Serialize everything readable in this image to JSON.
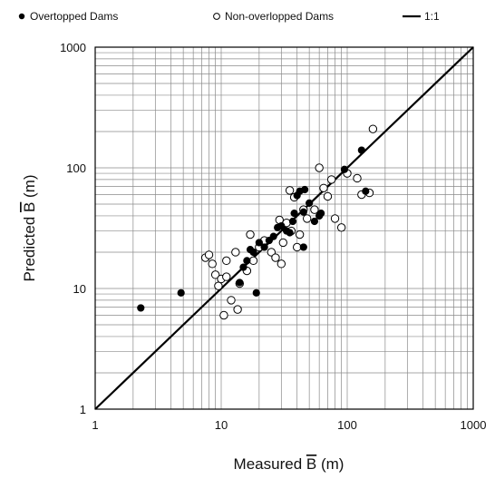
{
  "chart_data": {
    "type": "scatter",
    "xlabel": "Measured B (m)",
    "ylabel": "Predicted B (m)",
    "x_scale": "log",
    "y_scale": "log",
    "xlim": [
      1,
      1000
    ],
    "ylim": [
      1,
      1000
    ],
    "grid": true,
    "legend_position": "top",
    "x_ticks": [
      "1",
      "10",
      "100",
      "1000"
    ],
    "y_ticks": [
      "1",
      "10",
      "100",
      "1000"
    ],
    "series": [
      {
        "name": "Overtopped Dams",
        "marker": "filled-circle",
        "color": "#000000",
        "points": [
          [
            2.3,
            6.9
          ],
          [
            4.8,
            9.2
          ],
          [
            14,
            11.2
          ],
          [
            15,
            15
          ],
          [
            16,
            17
          ],
          [
            17,
            21
          ],
          [
            18,
            20
          ],
          [
            19,
            9.2
          ],
          [
            20,
            24
          ],
          [
            22,
            22
          ],
          [
            24,
            25
          ],
          [
            26,
            27
          ],
          [
            28,
            32
          ],
          [
            30,
            33
          ],
          [
            33,
            30
          ],
          [
            35,
            29
          ],
          [
            37,
            36
          ],
          [
            38,
            42
          ],
          [
            40,
            59
          ],
          [
            42,
            64
          ],
          [
            45,
            43
          ],
          [
            45,
            22
          ],
          [
            46,
            66
          ],
          [
            50,
            51
          ],
          [
            55,
            36
          ],
          [
            60,
            40
          ],
          [
            62,
            42
          ],
          [
            95,
            97
          ],
          [
            130,
            140
          ],
          [
            140,
            64
          ]
        ]
      },
      {
        "name": "Non-overlopped Dams",
        "marker": "open-circle",
        "color": "#000000",
        "points": [
          [
            7.5,
            18
          ],
          [
            8,
            19
          ],
          [
            8.5,
            16
          ],
          [
            9,
            13
          ],
          [
            9.5,
            10.5
          ],
          [
            10,
            12
          ],
          [
            10.5,
            6
          ],
          [
            11,
            17
          ],
          [
            11,
            12.5
          ],
          [
            12,
            8
          ],
          [
            13,
            20
          ],
          [
            13.5,
            6.7
          ],
          [
            14,
            11
          ],
          [
            16,
            14
          ],
          [
            17,
            28
          ],
          [
            18,
            17
          ],
          [
            20,
            22
          ],
          [
            22,
            25
          ],
          [
            25,
            20
          ],
          [
            27,
            18
          ],
          [
            29,
            37
          ],
          [
            30,
            16
          ],
          [
            31,
            24
          ],
          [
            33,
            35
          ],
          [
            35,
            65
          ],
          [
            36,
            30
          ],
          [
            38,
            57
          ],
          [
            40,
            22
          ],
          [
            42,
            28
          ],
          [
            45,
            45
          ],
          [
            48,
            38
          ],
          [
            55,
            45
          ],
          [
            60,
            100
          ],
          [
            65,
            68
          ],
          [
            70,
            58
          ],
          [
            75,
            80
          ],
          [
            80,
            38
          ],
          [
            90,
            32
          ],
          [
            100,
            90
          ],
          [
            120,
            82
          ],
          [
            130,
            60
          ],
          [
            150,
            62
          ],
          [
            160,
            210
          ]
        ]
      },
      {
        "name": "1:1",
        "marker": "line",
        "color": "#000000",
        "points": [
          [
            1,
            1
          ],
          [
            1000,
            1000
          ]
        ]
      }
    ]
  }
}
